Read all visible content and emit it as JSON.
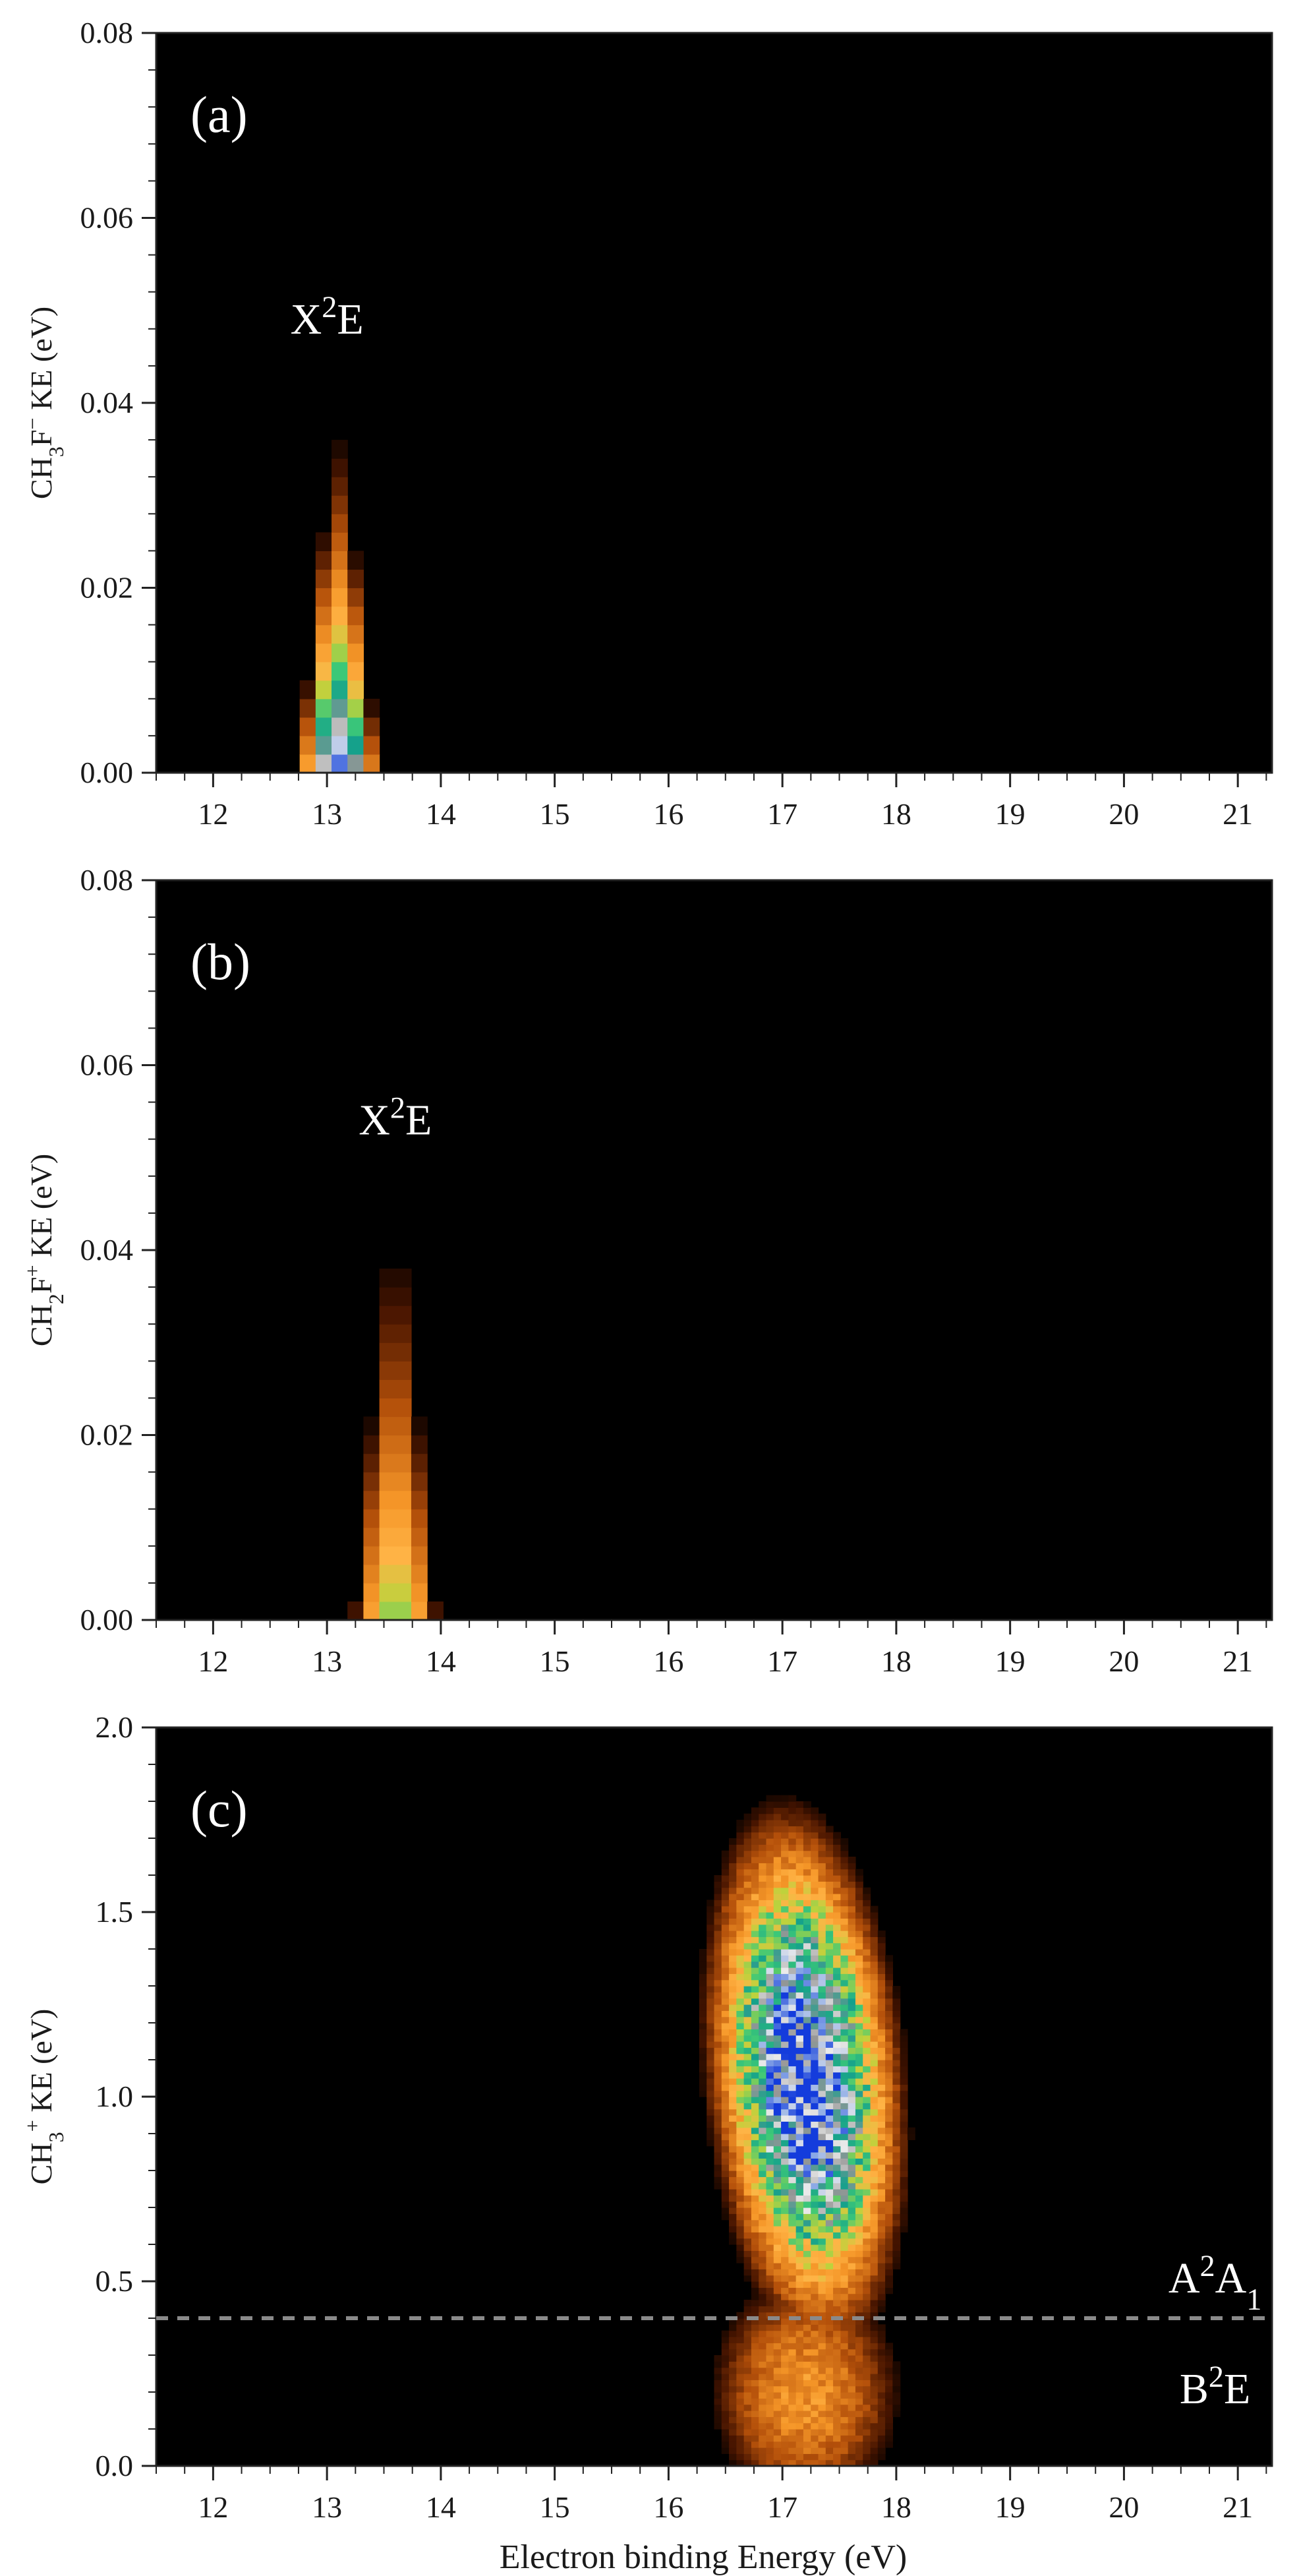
{
  "chart_data": [
    {
      "type": "heatmap",
      "panel_label": "(a)",
      "ylabel_parts": [
        "CH",
        "3",
        "F",
        "−",
        " KE (eV)"
      ],
      "xlim": [
        11.5,
        21.3
      ],
      "ylim": [
        0,
        0.08
      ],
      "xticks": [
        "12",
        "13",
        "14",
        "15",
        "16",
        "17",
        "18",
        "19",
        "20",
        "21"
      ],
      "yticks": [
        "0.00",
        "0.02",
        "0.04",
        "0.06",
        "0.08"
      ],
      "annotations": [
        {
          "parts": [
            "X",
            "2",
            "E"
          ],
          "x": 13.0,
          "y": 0.0475
        }
      ],
      "peaks": [
        {
          "x": 13.1,
          "y": 0.0,
          "x_half_width": 0.36,
          "y_extent": 0.038,
          "max_intensity": 1.0,
          "slope": 0.0
        }
      ]
    },
    {
      "type": "heatmap",
      "panel_label": "(b)",
      "ylabel_parts": [
        "CH",
        "2",
        "F",
        "+",
        " KE (eV)"
      ],
      "xlim": [
        11.5,
        21.3
      ],
      "ylim": [
        0,
        0.08
      ],
      "xticks": [
        "12",
        "13",
        "14",
        "15",
        "16",
        "17",
        "18",
        "19",
        "20",
        "21"
      ],
      "yticks": [
        "0.00",
        "0.02",
        "0.04",
        "0.06",
        "0.08"
      ],
      "annotations": [
        {
          "parts": [
            "X",
            "2",
            "E"
          ],
          "x": 13.6,
          "y": 0.0525
        }
      ],
      "peaks": [
        {
          "x": 13.6,
          "y": 0.0,
          "x_half_width": 0.38,
          "y_extent": 0.046,
          "max_intensity": 0.62,
          "slope": 0.0
        }
      ]
    },
    {
      "type": "heatmap",
      "panel_label": "(c)",
      "ylabel_parts": [
        "CH",
        "3",
        "+",
        " KE (eV)"
      ],
      "xlabel": "Electron binding Energy (eV)",
      "xlim": [
        11.5,
        21.3
      ],
      "ylim": [
        0,
        2.0
      ],
      "xticks": [
        "12",
        "13",
        "14",
        "15",
        "16",
        "17",
        "18",
        "19",
        "20",
        "21"
      ],
      "yticks": [
        "0.0",
        "0.5",
        "1.0",
        "1.5",
        "2.0"
      ],
      "dashed_line_y": 0.4,
      "annotations": [
        {
          "parts": [
            "A",
            "2",
            "A",
            "1"
          ],
          "x": 20.8,
          "y": 0.47
        },
        {
          "parts": [
            "B",
            "2",
            "E"
          ],
          "x": 20.8,
          "y": 0.17
        }
      ],
      "peaks": [
        {
          "x": 17.2,
          "y": 1.05,
          "x_half_width": 0.95,
          "y_half_height": 0.8,
          "max_intensity": 1.0,
          "slope": -0.25
        },
        {
          "x": 17.2,
          "y": 0.2,
          "x_half_width": 0.9,
          "y_half_height": 0.35,
          "max_intensity": 0.38,
          "slope": 0.0
        }
      ]
    }
  ]
}
